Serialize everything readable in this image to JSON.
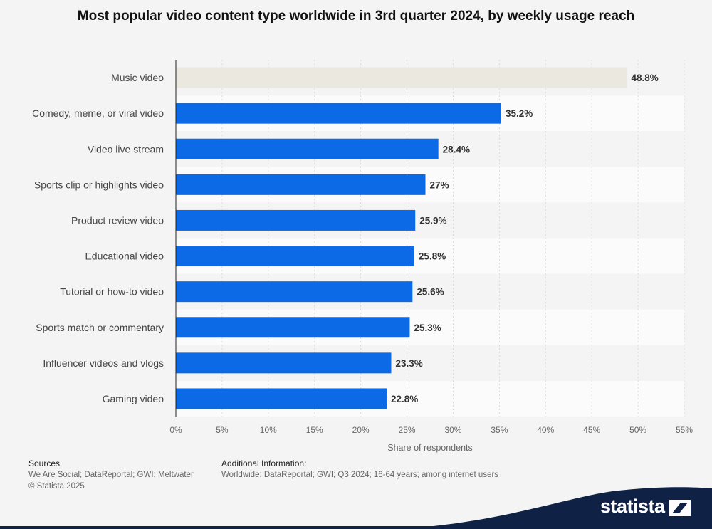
{
  "chart_data": {
    "type": "bar",
    "orientation": "horizontal",
    "title": "Most popular video content type worldwide in 3rd quarter 2024, by weekly usage reach",
    "xlabel": "Share of respondents",
    "ylabel": "",
    "categories": [
      "Music video",
      "Comedy, meme, or viral video",
      "Video live stream",
      "Sports clip or highlights video",
      "Product review video",
      "Educational video",
      "Tutorial or how-to video",
      "Sports match or commentary",
      "Influencer videos and vlogs",
      "Gaming video"
    ],
    "values": [
      48.8,
      35.2,
      28.4,
      27,
      25.9,
      25.8,
      25.6,
      25.3,
      23.3,
      22.8
    ],
    "value_labels": [
      "48.8%",
      "35.2%",
      "28.4%",
      "27%",
      "25.9%",
      "25.8%",
      "25.6%",
      "25.3%",
      "23.3%",
      "22.8%"
    ],
    "xlim": [
      0,
      55
    ],
    "xticks": [
      0,
      5,
      10,
      15,
      20,
      25,
      30,
      35,
      40,
      45,
      50,
      55
    ],
    "xtick_labels": [
      "0%",
      "5%",
      "10%",
      "15%",
      "20%",
      "25%",
      "30%",
      "35%",
      "40%",
      "45%",
      "50%",
      "55%"
    ],
    "grid": true,
    "colors": {
      "bar": "#0d6ae6",
      "highlight": "#ebe8e0"
    },
    "highlighted_category": "Music video"
  },
  "footer": {
    "sources_heading": "Sources",
    "sources_line1": "We Are Social; DataReportal; GWI; Meltwater",
    "sources_line2": "© Statista 2025",
    "additional_heading": "Additional Information:",
    "additional_text": "Worldwide; DataReportal; GWI; Q3 2024; 16-64 years; among internet users"
  },
  "brand": {
    "name": "statista",
    "color": "#0f2246"
  }
}
